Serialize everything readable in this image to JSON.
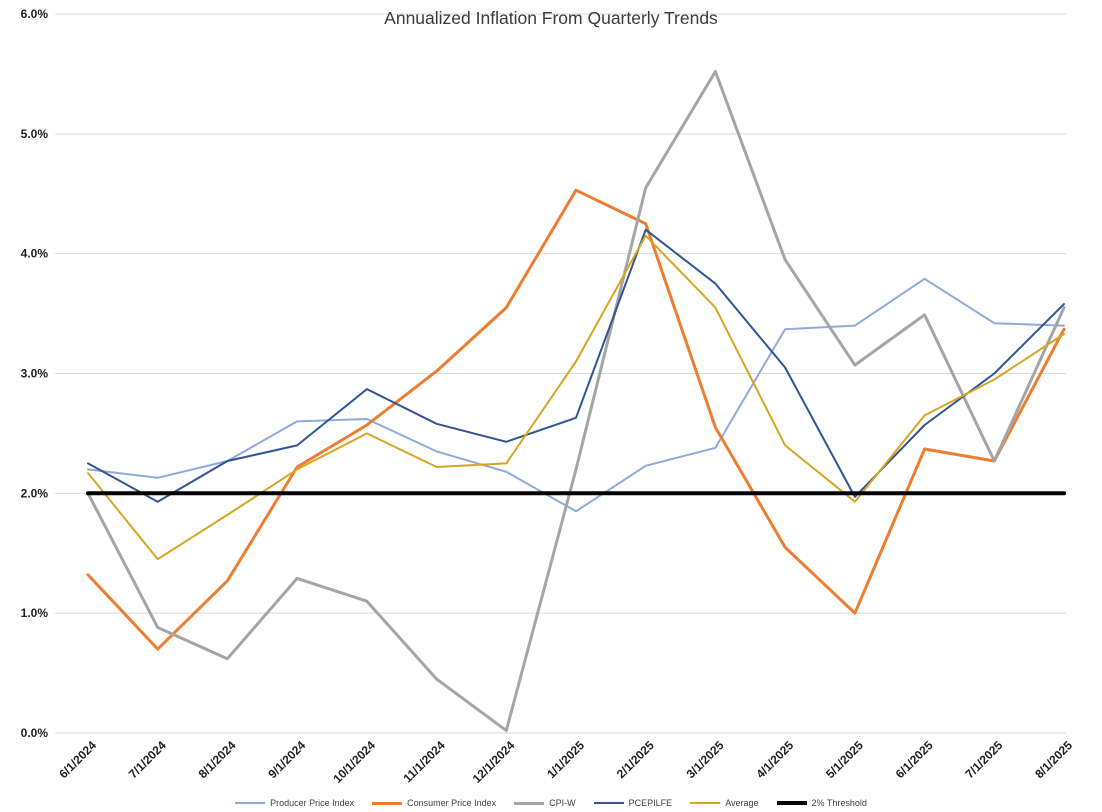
{
  "chart_data": {
    "type": "line",
    "title": "Annualized Inflation From Quarterly Trends",
    "x_labels": [
      "6/1/2024",
      "7/1/2024",
      "8/1/2024",
      "9/1/2024",
      "10/1/2024",
      "11/1/2024",
      "12/1/2024",
      "1/1/2025",
      "2/1/2025",
      "3/1/2025",
      "4/1/2025",
      "5/1/2025",
      "6/1/2025",
      "7/1/2025",
      "8/1/2025"
    ],
    "xlabel": "",
    "ylabel": "",
    "y_axis": {
      "min": 0,
      "max": 6,
      "step": 1,
      "tick_labels": [
        "0.0%",
        "1.0%",
        "2.0%",
        "3.0%",
        "4.0%",
        "5.0%",
        "6.0%"
      ]
    },
    "grid": true,
    "legend_position": "bottom",
    "series": [
      {
        "name": "Producer Price Index",
        "color": "#8FAADC",
        "width": 2,
        "values": [
          2.2,
          2.13,
          2.27,
          2.6,
          2.62,
          2.35,
          2.18,
          1.85,
          2.23,
          2.38,
          3.37,
          3.4,
          3.79,
          3.42,
          3.4
        ]
      },
      {
        "name": "Consumer Price Index",
        "color": "#ED7D31",
        "width": 3,
        "values": [
          1.32,
          0.7,
          1.27,
          2.22,
          2.57,
          3.02,
          3.55,
          4.53,
          4.25,
          2.55,
          1.55,
          1.0,
          2.37,
          2.27,
          3.37
        ]
      },
      {
        "name": "CPI-W",
        "color": "#A5A5A5",
        "width": 3,
        "values": [
          2.0,
          0.88,
          0.62,
          1.29,
          1.1,
          0.45,
          0.02,
          2.2,
          4.55,
          5.52,
          3.95,
          3.07,
          3.49,
          2.27,
          3.55
        ]
      },
      {
        "name": "PCEPILFE",
        "color": "#2F5597",
        "width": 2,
        "values": [
          2.25,
          1.93,
          2.27,
          2.4,
          2.87,
          2.58,
          2.43,
          2.63,
          4.2,
          3.75,
          3.05,
          1.97,
          2.57,
          3.0,
          3.58
        ]
      },
      {
        "name": "Average",
        "color": "#D9A521",
        "width": 2,
        "values": [
          2.17,
          1.45,
          1.82,
          2.2,
          2.5,
          2.22,
          2.25,
          3.1,
          4.15,
          3.55,
          2.4,
          1.93,
          2.65,
          2.95,
          3.33
        ]
      },
      {
        "name": "2% Threshold",
        "color": "#000000",
        "width": 4,
        "values": [
          2.0,
          2.0,
          2.0,
          2.0,
          2.0,
          2.0,
          2.0,
          2.0,
          2.0,
          2.0,
          2.0,
          2.0,
          2.0,
          2.0,
          2.0
        ]
      }
    ]
  }
}
